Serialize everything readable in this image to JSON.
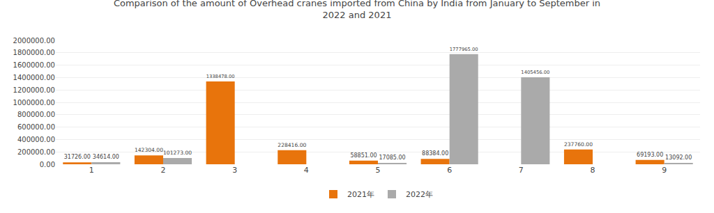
{
  "chart_data": {
    "type": "bar",
    "title": "Comparison of the amount of Overhead cranes imported from China by India from January to September in\n2022 and 2021",
    "categories": [
      1,
      2,
      3,
      4,
      5,
      6,
      7,
      8,
      9
    ],
    "series": [
      {
        "name": "2021年",
        "color": "#E8740C",
        "values": [
          31726.0,
          142304.0,
          1338478.0,
          228416.0,
          58851.0,
          88384.0,
          0.0,
          237760.0,
          69193.0
        ],
        "value_labels": [
          "31726.00",
          "142304.00",
          "1338478.00",
          "228416.00",
          "58851.00",
          "88384.00",
          null,
          "237760.00",
          "69193.00"
        ]
      },
      {
        "name": "2022年",
        "color": "#AAAAAA",
        "values": [
          34614.0,
          101273.0,
          0.0,
          0.0,
          17085.0,
          1777965.0,
          1405456.0,
          0.0,
          13092.0
        ],
        "value_labels": [
          "34614.00",
          "101273.00",
          null,
          null,
          "17085.00",
          "1777965.00",
          "1405456.00",
          null,
          "13092.00"
        ]
      }
    ],
    "ylim": [
      0,
      2000000
    ],
    "yticks": [
      {
        "value": 0,
        "label": "0.00"
      },
      {
        "value": 200000,
        "label": "200000.00"
      },
      {
        "value": 400000,
        "label": "400000.00"
      },
      {
        "value": 600000,
        "label": "600000.00"
      },
      {
        "value": 800000,
        "label": "800000.00"
      },
      {
        "value": 1000000,
        "label": "1000000.00"
      },
      {
        "value": 1200000,
        "label": "1200000.00"
      },
      {
        "value": 1400000,
        "label": "1400000.00"
      },
      {
        "value": 1600000,
        "label": "1600000.00"
      },
      {
        "value": 1800000,
        "label": "1800000.00"
      },
      {
        "value": 2000000,
        "label": "2000000.00"
      }
    ],
    "grid": true,
    "legend": "bottom",
    "data_labels": true
  }
}
